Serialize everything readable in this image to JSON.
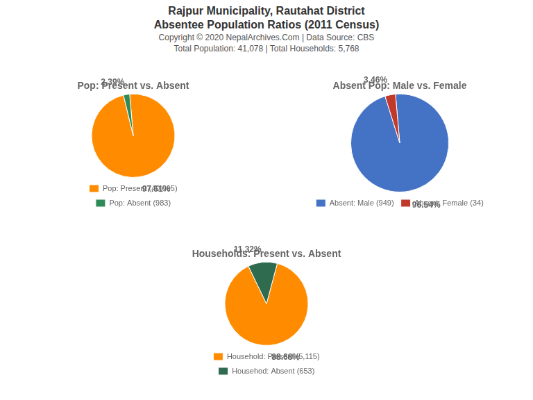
{
  "title": [
    "Rajpur Municipality, Rautahat District",
    "Absentee Population Ratios (2011 Census)"
  ],
  "subtitle": [
    "Copyright © 2020 NepalArchives.Com | Data Source: CBS",
    "Total Population: 41,078 | Total Households: 5,768"
  ],
  "chart_data": [
    {
      "type": "pie",
      "title": "Pop: Present vs. Absent",
      "categories": [
        "Pop: Present (40,095)",
        "Pop: Absent (983)"
      ],
      "values": [
        97.61,
        2.39
      ],
      "value_labels": [
        "97.61%",
        "2.39%"
      ],
      "colors": [
        "#FF8C00",
        "#2E8B57"
      ],
      "data_labels": true,
      "legend": "bottom"
    },
    {
      "type": "pie",
      "title": "Absent Pop: Male vs. Female",
      "categories": [
        "Absent: Male (949)",
        "Absent: Female (34)"
      ],
      "values": [
        96.54,
        3.46
      ],
      "value_labels": [
        "96.54%",
        "3.46%"
      ],
      "colors": [
        "#4472C4",
        "#C0392B"
      ],
      "data_labels": true,
      "legend": "bottom"
    },
    {
      "type": "pie",
      "title": "Households: Present vs. Absent",
      "categories": [
        "Household: Present (5,115)",
        "Househod: Absent (653)"
      ],
      "values": [
        88.68,
        11.32
      ],
      "value_labels": [
        "88.68%",
        "11.32%"
      ],
      "colors": [
        "#FF8C00",
        "#2E6B4F"
      ],
      "data_labels": true,
      "legend": "bottom"
    }
  ]
}
